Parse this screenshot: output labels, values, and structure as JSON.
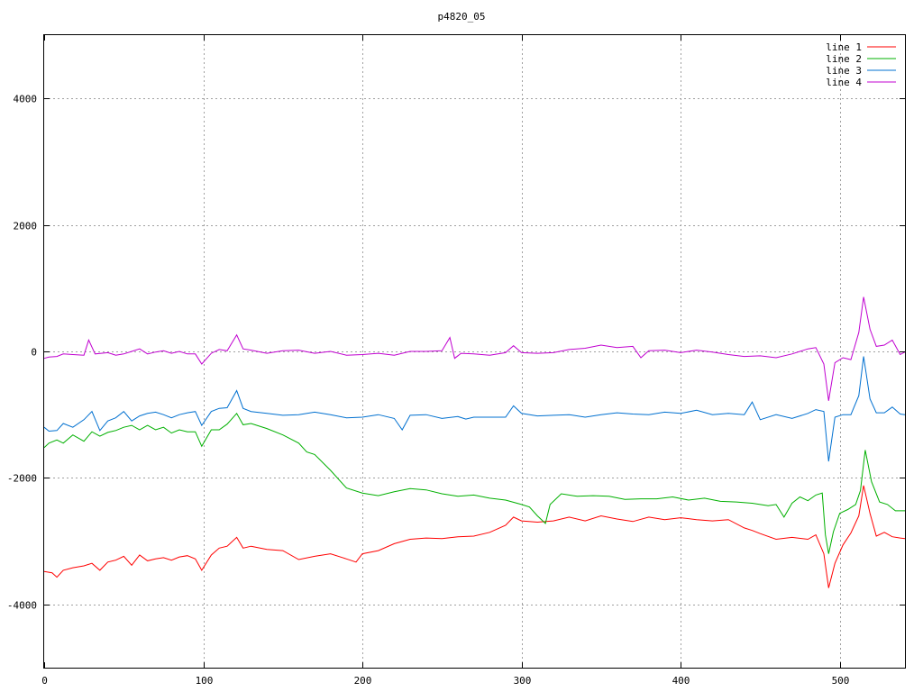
{
  "chart_data": {
    "type": "line",
    "title": "p4820_05",
    "xlabel": "",
    "ylabel": "",
    "xlim": [
      0,
      541
    ],
    "ylim": [
      -5000,
      5000
    ],
    "x_ticks": [
      0,
      100,
      200,
      300,
      400,
      500
    ],
    "y_ticks": [
      -4000,
      -2000,
      0,
      2000,
      4000
    ],
    "y_tick_labels": [
      "-4000",
      "-2000",
      "0",
      "2000",
      "4000"
    ],
    "grid": true,
    "legend_position": "top-right",
    "series": [
      {
        "name": "line 1",
        "color": "#ff0000",
        "points": [
          [
            0,
            -3480
          ],
          [
            5,
            -3500
          ],
          [
            8,
            -3570
          ],
          [
            12,
            -3460
          ],
          [
            18,
            -3420
          ],
          [
            25,
            -3390
          ],
          [
            30,
            -3350
          ],
          [
            35,
            -3460
          ],
          [
            40,
            -3330
          ],
          [
            45,
            -3300
          ],
          [
            50,
            -3240
          ],
          [
            55,
            -3380
          ],
          [
            60,
            -3220
          ],
          [
            65,
            -3310
          ],
          [
            70,
            -3280
          ],
          [
            75,
            -3260
          ],
          [
            80,
            -3300
          ],
          [
            85,
            -3250
          ],
          [
            90,
            -3230
          ],
          [
            95,
            -3280
          ],
          [
            99,
            -3460
          ],
          [
            105,
            -3220
          ],
          [
            110,
            -3110
          ],
          [
            115,
            -3080
          ],
          [
            121,
            -2940
          ],
          [
            125,
            -3110
          ],
          [
            130,
            -3080
          ],
          [
            140,
            -3130
          ],
          [
            150,
            -3150
          ],
          [
            160,
            -3290
          ],
          [
            170,
            -3240
          ],
          [
            180,
            -3200
          ],
          [
            190,
            -3280
          ],
          [
            196,
            -3330
          ],
          [
            200,
            -3200
          ],
          [
            210,
            -3150
          ],
          [
            220,
            -3040
          ],
          [
            230,
            -2970
          ],
          [
            240,
            -2950
          ],
          [
            250,
            -2960
          ],
          [
            260,
            -2930
          ],
          [
            270,
            -2920
          ],
          [
            280,
            -2860
          ],
          [
            290,
            -2750
          ],
          [
            295,
            -2620
          ],
          [
            300,
            -2680
          ],
          [
            310,
            -2700
          ],
          [
            320,
            -2680
          ],
          [
            330,
            -2620
          ],
          [
            340,
            -2680
          ],
          [
            350,
            -2600
          ],
          [
            360,
            -2650
          ],
          [
            370,
            -2690
          ],
          [
            380,
            -2620
          ],
          [
            390,
            -2660
          ],
          [
            400,
            -2630
          ],
          [
            410,
            -2660
          ],
          [
            420,
            -2680
          ],
          [
            430,
            -2660
          ],
          [
            440,
            -2790
          ],
          [
            445,
            -2830
          ],
          [
            450,
            -2880
          ],
          [
            460,
            -2970
          ],
          [
            470,
            -2940
          ],
          [
            480,
            -2970
          ],
          [
            485,
            -2900
          ],
          [
            490,
            -3200
          ],
          [
            493,
            -3740
          ],
          [
            497,
            -3350
          ],
          [
            502,
            -3060
          ],
          [
            507,
            -2870
          ],
          [
            512,
            -2600
          ],
          [
            515,
            -2120
          ],
          [
            519,
            -2560
          ],
          [
            523,
            -2920
          ],
          [
            528,
            -2860
          ],
          [
            533,
            -2930
          ],
          [
            538,
            -2950
          ],
          [
            541,
            -2960
          ]
        ]
      },
      {
        "name": "line 2",
        "color": "#00b000",
        "points": [
          [
            0,
            -1520
          ],
          [
            3,
            -1450
          ],
          [
            8,
            -1400
          ],
          [
            12,
            -1450
          ],
          [
            18,
            -1320
          ],
          [
            25,
            -1420
          ],
          [
            30,
            -1270
          ],
          [
            35,
            -1340
          ],
          [
            40,
            -1280
          ],
          [
            45,
            -1250
          ],
          [
            50,
            -1200
          ],
          [
            55,
            -1170
          ],
          [
            60,
            -1240
          ],
          [
            65,
            -1170
          ],
          [
            70,
            -1240
          ],
          [
            75,
            -1200
          ],
          [
            80,
            -1290
          ],
          [
            85,
            -1240
          ],
          [
            90,
            -1270
          ],
          [
            95,
            -1270
          ],
          [
            99,
            -1500
          ],
          [
            105,
            -1240
          ],
          [
            110,
            -1240
          ],
          [
            115,
            -1150
          ],
          [
            121,
            -980
          ],
          [
            125,
            -1160
          ],
          [
            130,
            -1140
          ],
          [
            140,
            -1220
          ],
          [
            150,
            -1320
          ],
          [
            160,
            -1450
          ],
          [
            165,
            -1590
          ],
          [
            170,
            -1630
          ],
          [
            180,
            -1880
          ],
          [
            190,
            -2160
          ],
          [
            200,
            -2240
          ],
          [
            210,
            -2280
          ],
          [
            220,
            -2220
          ],
          [
            230,
            -2170
          ],
          [
            240,
            -2190
          ],
          [
            250,
            -2250
          ],
          [
            260,
            -2290
          ],
          [
            270,
            -2270
          ],
          [
            280,
            -2320
          ],
          [
            290,
            -2350
          ],
          [
            300,
            -2420
          ],
          [
            305,
            -2460
          ],
          [
            310,
            -2600
          ],
          [
            315,
            -2720
          ],
          [
            318,
            -2420
          ],
          [
            325,
            -2250
          ],
          [
            335,
            -2290
          ],
          [
            345,
            -2280
          ],
          [
            355,
            -2290
          ],
          [
            365,
            -2340
          ],
          [
            375,
            -2330
          ],
          [
            385,
            -2330
          ],
          [
            395,
            -2300
          ],
          [
            405,
            -2350
          ],
          [
            415,
            -2320
          ],
          [
            425,
            -2370
          ],
          [
            435,
            -2380
          ],
          [
            445,
            -2400
          ],
          [
            455,
            -2440
          ],
          [
            460,
            -2420
          ],
          [
            465,
            -2620
          ],
          [
            470,
            -2400
          ],
          [
            475,
            -2300
          ],
          [
            480,
            -2360
          ],
          [
            485,
            -2270
          ],
          [
            489,
            -2240
          ],
          [
            491,
            -2900
          ],
          [
            493,
            -3200
          ],
          [
            496,
            -2850
          ],
          [
            500,
            -2560
          ],
          [
            505,
            -2500
          ],
          [
            510,
            -2420
          ],
          [
            513,
            -2200
          ],
          [
            516,
            -1560
          ],
          [
            520,
            -2060
          ],
          [
            525,
            -2380
          ],
          [
            530,
            -2420
          ],
          [
            535,
            -2520
          ],
          [
            541,
            -2520
          ]
        ]
      },
      {
        "name": "line 3",
        "color": "#0070d0",
        "points": [
          [
            0,
            -1200
          ],
          [
            3,
            -1260
          ],
          [
            8,
            -1250
          ],
          [
            12,
            -1140
          ],
          [
            18,
            -1200
          ],
          [
            25,
            -1080
          ],
          [
            30,
            -950
          ],
          [
            35,
            -1250
          ],
          [
            40,
            -1100
          ],
          [
            45,
            -1050
          ],
          [
            50,
            -950
          ],
          [
            55,
            -1100
          ],
          [
            60,
            -1020
          ],
          [
            65,
            -980
          ],
          [
            70,
            -960
          ],
          [
            75,
            -1000
          ],
          [
            80,
            -1050
          ],
          [
            85,
            -1000
          ],
          [
            90,
            -970
          ],
          [
            95,
            -950
          ],
          [
            99,
            -1170
          ],
          [
            105,
            -950
          ],
          [
            110,
            -900
          ],
          [
            115,
            -890
          ],
          [
            121,
            -620
          ],
          [
            125,
            -900
          ],
          [
            130,
            -950
          ],
          [
            140,
            -980
          ],
          [
            150,
            -1010
          ],
          [
            160,
            -1000
          ],
          [
            170,
            -960
          ],
          [
            180,
            -1000
          ],
          [
            190,
            -1050
          ],
          [
            200,
            -1040
          ],
          [
            210,
            -1000
          ],
          [
            220,
            -1060
          ],
          [
            225,
            -1240
          ],
          [
            230,
            -1010
          ],
          [
            240,
            -1000
          ],
          [
            250,
            -1060
          ],
          [
            260,
            -1030
          ],
          [
            265,
            -1070
          ],
          [
            270,
            -1040
          ],
          [
            280,
            -1040
          ],
          [
            290,
            -1040
          ],
          [
            295,
            -860
          ],
          [
            300,
            -980
          ],
          [
            310,
            -1020
          ],
          [
            320,
            -1010
          ],
          [
            330,
            -1000
          ],
          [
            340,
            -1040
          ],
          [
            350,
            -1000
          ],
          [
            360,
            -970
          ],
          [
            370,
            -990
          ],
          [
            380,
            -1000
          ],
          [
            390,
            -960
          ],
          [
            400,
            -980
          ],
          [
            410,
            -930
          ],
          [
            420,
            -1000
          ],
          [
            430,
            -980
          ],
          [
            440,
            -1000
          ],
          [
            445,
            -800
          ],
          [
            450,
            -1080
          ],
          [
            460,
            -1000
          ],
          [
            470,
            -1060
          ],
          [
            480,
            -980
          ],
          [
            485,
            -920
          ],
          [
            490,
            -950
          ],
          [
            493,
            -1740
          ],
          [
            497,
            -1040
          ],
          [
            502,
            -1000
          ],
          [
            507,
            -1000
          ],
          [
            512,
            -700
          ],
          [
            515,
            -80
          ],
          [
            519,
            -750
          ],
          [
            523,
            -970
          ],
          [
            528,
            -970
          ],
          [
            533,
            -880
          ],
          [
            538,
            -990
          ],
          [
            541,
            -1000
          ]
        ]
      },
      {
        "name": "line 4",
        "color": "#c000d0",
        "points": [
          [
            0,
            -110
          ],
          [
            3,
            -90
          ],
          [
            8,
            -80
          ],
          [
            12,
            -40
          ],
          [
            18,
            -50
          ],
          [
            25,
            -60
          ],
          [
            28,
            180
          ],
          [
            32,
            -40
          ],
          [
            40,
            -20
          ],
          [
            45,
            -60
          ],
          [
            50,
            -40
          ],
          [
            55,
            0
          ],
          [
            60,
            40
          ],
          [
            65,
            -40
          ],
          [
            70,
            -10
          ],
          [
            75,
            10
          ],
          [
            80,
            -30
          ],
          [
            85,
            0
          ],
          [
            90,
            -40
          ],
          [
            95,
            -40
          ],
          [
            99,
            -200
          ],
          [
            105,
            -30
          ],
          [
            110,
            30
          ],
          [
            115,
            10
          ],
          [
            121,
            260
          ],
          [
            125,
            40
          ],
          [
            130,
            20
          ],
          [
            140,
            -30
          ],
          [
            150,
            10
          ],
          [
            160,
            20
          ],
          [
            170,
            -30
          ],
          [
            180,
            0
          ],
          [
            190,
            -60
          ],
          [
            200,
            -50
          ],
          [
            210,
            -30
          ],
          [
            220,
            -60
          ],
          [
            230,
            0
          ],
          [
            240,
            0
          ],
          [
            250,
            10
          ],
          [
            255,
            220
          ],
          [
            258,
            -110
          ],
          [
            262,
            -30
          ],
          [
            270,
            -40
          ],
          [
            280,
            -60
          ],
          [
            290,
            -20
          ],
          [
            295,
            90
          ],
          [
            300,
            -20
          ],
          [
            310,
            -30
          ],
          [
            320,
            -20
          ],
          [
            330,
            30
          ],
          [
            340,
            50
          ],
          [
            350,
            100
          ],
          [
            360,
            60
          ],
          [
            370,
            80
          ],
          [
            375,
            -100
          ],
          [
            380,
            10
          ],
          [
            390,
            20
          ],
          [
            400,
            -20
          ],
          [
            410,
            20
          ],
          [
            420,
            -10
          ],
          [
            430,
            -50
          ],
          [
            440,
            -80
          ],
          [
            450,
            -70
          ],
          [
            460,
            -100
          ],
          [
            470,
            -40
          ],
          [
            480,
            40
          ],
          [
            485,
            60
          ],
          [
            490,
            -200
          ],
          [
            493,
            -780
          ],
          [
            497,
            -180
          ],
          [
            502,
            -100
          ],
          [
            507,
            -130
          ],
          [
            512,
            300
          ],
          [
            515,
            860
          ],
          [
            519,
            350
          ],
          [
            523,
            80
          ],
          [
            528,
            100
          ],
          [
            533,
            180
          ],
          [
            538,
            -50
          ],
          [
            541,
            -10
          ]
        ]
      }
    ]
  }
}
